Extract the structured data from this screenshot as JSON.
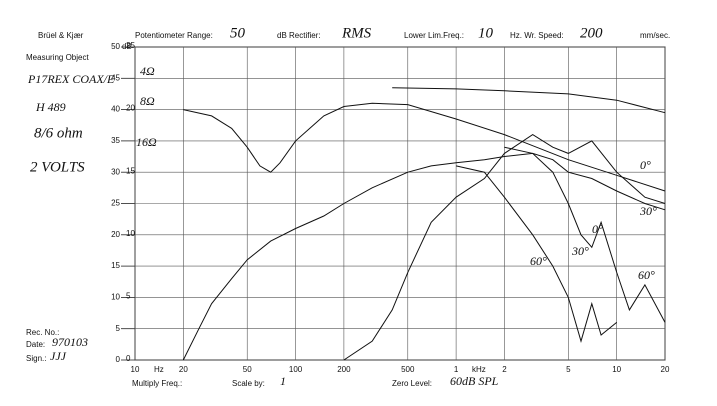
{
  "chart_data": {
    "type": "line",
    "brand": "Brüel & Kjær",
    "measuring_object_label": "Measuring Object",
    "potentiometer_label": "Potentiometer Range:",
    "potentiometer_range": "50",
    "rectifier_label": "dB Rectifier:",
    "rectifier": "RMS",
    "lower_lim_label": "Lower Lim.Freq.:",
    "lower_lim_freq": "10",
    "wr_speed_label": "Hz. Wr. Speed:",
    "wr_speed": "200",
    "wr_speed_unit": "mm/sec.",
    "ylabel": "dB",
    "notes": [
      "P17REX COAX/E",
      "H 489",
      "8/6 ohm",
      "2 VOLTS"
    ],
    "rec_label": "Rec. No.:",
    "date_label": "Date:",
    "date": "970103",
    "sign_label": "Sign.:",
    "sign": "JJJ",
    "xunit": "Hz",
    "xunit_k": "kHz",
    "multiply_label": "Multiply Freq.:",
    "scale_label": "Scale by:",
    "scale_by": "1",
    "zero_level_label": "Zero Level:",
    "zero_level": "60dB SPL",
    "annotations": [
      "4Ω",
      "8Ω",
      "16Ω",
      "0°",
      "30°",
      "0°",
      "30°",
      "60°",
      "60°"
    ],
    "log_x": true,
    "grid": true,
    "xlim": [
      10,
      20000
    ],
    "xticks": [
      10,
      20,
      50,
      100,
      200,
      500,
      {
        "value": 1000,
        "label": "1"
      },
      {
        "value": 2000,
        "label": "2"
      },
      {
        "value": 5000,
        "label": "5"
      },
      {
        "value": 10000,
        "label": "10"
      },
      {
        "value": 20000,
        "label": "20"
      }
    ],
    "ylim": [
      0,
      50
    ],
    "yticks": [
      0,
      5,
      10,
      15,
      20,
      25,
      30,
      35,
      40,
      45,
      50
    ],
    "y2lim": [
      0,
      25
    ],
    "y2ticks": [
      0,
      5,
      10,
      15,
      20,
      25
    ],
    "series": [
      {
        "color": "#111111",
        "x": [
          20,
          30,
          40,
          50,
          60,
          70,
          80,
          100,
          150,
          200,
          300,
          500,
          1000,
          2000,
          5000,
          10000,
          20000
        ],
        "values": [
          40,
          39,
          37,
          34,
          31,
          30,
          31.5,
          35,
          39,
          40.5,
          41,
          40.8,
          38.5,
          36,
          32,
          29.5,
          27
        ]
      },
      {
        "color": "#111111",
        "x": [
          400,
          1000,
          2000,
          5000,
          10000,
          20000
        ],
        "values": [
          43.5,
          43.3,
          43,
          42.5,
          41.5,
          39.5
        ]
      },
      {
        "color": "#111111",
        "x": [
          20,
          25,
          30,
          40,
          50,
          70,
          100,
          150,
          200,
          300,
          500,
          700,
          1000,
          1500,
          2000,
          3000,
          4000,
          5000,
          7000,
          10000,
          15000,
          20000
        ],
        "values": [
          0,
          5,
          9,
          13,
          16,
          19,
          21,
          23,
          25,
          27.5,
          30,
          31,
          31.5,
          32,
          32.5,
          33,
          32,
          30,
          29,
          27,
          25,
          24
        ]
      },
      {
        "color": "#111111",
        "x": [
          200,
          300,
          400,
          500,
          700,
          1000,
          1500,
          2000,
          3000,
          4000,
          5000,
          7000,
          10000,
          15000,
          20000
        ],
        "values": [
          0,
          3,
          8,
          14,
          22,
          26,
          29,
          33,
          36,
          34,
          33,
          35,
          30,
          26,
          25
        ]
      },
      {
        "color": "#111111",
        "x": [
          1000,
          1500,
          2000,
          3000,
          4000,
          5000,
          6000,
          7000,
          8000,
          10000
        ],
        "values": [
          31,
          30,
          26,
          20,
          15,
          10,
          3,
          9,
          4,
          6
        ]
      },
      {
        "color": "#111111",
        "x": [
          2000,
          3000,
          4000,
          5000,
          6000,
          7000,
          8000,
          10000,
          12000,
          15000,
          20000
        ],
        "values": [
          34,
          33,
          30,
          25,
          20,
          18,
          22,
          14,
          8,
          12,
          6
        ]
      }
    ]
  }
}
